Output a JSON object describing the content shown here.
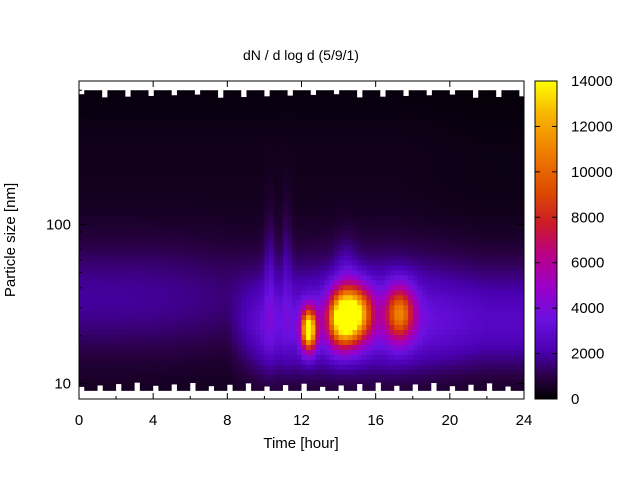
{
  "chart_data": {
    "type": "heatmap",
    "title": "dN / d log d (5/9/1)",
    "xlabel": "Time [hour]",
    "ylabel": "Particle size [nm]",
    "xlim": [
      0,
      24
    ],
    "x_ticks": [
      0,
      4,
      8,
      12,
      16,
      20,
      24
    ],
    "ylim": [
      8,
      800
    ],
    "y_scale": "log",
    "y_tick_labels": [
      10,
      100
    ],
    "colorbar": {
      "range": [
        0,
        14000
      ],
      "ticks": [
        0,
        2000,
        4000,
        6000,
        8000,
        10000,
        12000,
        14000
      ],
      "colormap": "black-purple-blue-magenta-red-orange-yellow"
    },
    "features": [
      {
        "time_h": 12.4,
        "diameter_nm": 22,
        "value": 12500
      },
      {
        "time_h": 14.2,
        "diameter_nm": 26,
        "value": 12000
      },
      {
        "time_h": 15.1,
        "diameter_nm": 28,
        "value": 8000
      },
      {
        "time_h": 17.3,
        "diameter_nm": 28,
        "value": 7500
      }
    ],
    "grid": false,
    "legend": "colorbar-right"
  }
}
